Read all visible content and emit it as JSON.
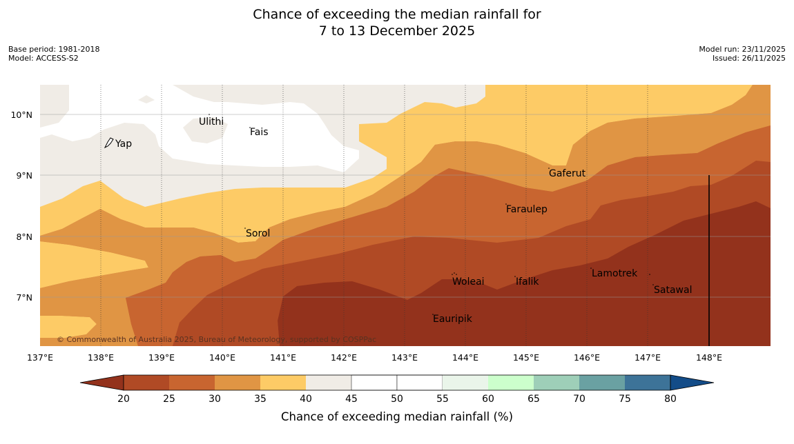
{
  "title": {
    "line1": "Chance of exceeding the median rainfall for",
    "line2": "7 to 13 December 2025"
  },
  "meta_left": {
    "base_period": "Base period: 1981-2018",
    "model": "Model: ACCESS-S2"
  },
  "meta_right": {
    "model_run": "Model run: 23/11/2025",
    "issued": "Issued: 26/11/2025"
  },
  "map": {
    "lon_labels": [
      "137°E",
      "138°E",
      "139°E",
      "140°E",
      "141°E",
      "142°E",
      "143°E",
      "144°E",
      "145°E",
      "146°E",
      "147°E",
      "148°E"
    ],
    "lat_labels": [
      "10°N",
      "9°N",
      "8°N",
      "7°N"
    ],
    "places": [
      {
        "name": "Yap"
      },
      {
        "name": "Ulithi"
      },
      {
        "name": "Fais"
      },
      {
        "name": "Sorol"
      },
      {
        "name": "Gaferut"
      },
      {
        "name": "Faraulep"
      },
      {
        "name": "Woleai"
      },
      {
        "name": "Ifalik"
      },
      {
        "name": "Lamotrek"
      },
      {
        "name": "Satawal"
      },
      {
        "name": "Eauripik"
      }
    ],
    "copyright": "© Commonwealth of Australia 2025, Bureau of Meteorology, supported by COSPPac"
  },
  "colorbar": {
    "label": "Chance of exceeding median rainfall (%)",
    "ticks": [
      "20",
      "25",
      "30",
      "35",
      "40",
      "45",
      "50",
      "55",
      "60",
      "65",
      "70",
      "75",
      "80"
    ],
    "colors": {
      "lt20": "#93321c",
      "b20_25": "#b04a25",
      "b25_30": "#c86530",
      "b30_35": "#e09544",
      "b35_40": "#fdcb66",
      "b40_45": "#f0ece6",
      "b45_50": "#ffffff",
      "b50_55": "#ffffff",
      "b55_60": "#eaf5ea",
      "b60_65": "#ccffcc",
      "b65_70": "#9ecfb8",
      "b70_75": "#6aa1a2",
      "b75_80": "#3d7398",
      "gt80": "#134c88"
    }
  }
}
